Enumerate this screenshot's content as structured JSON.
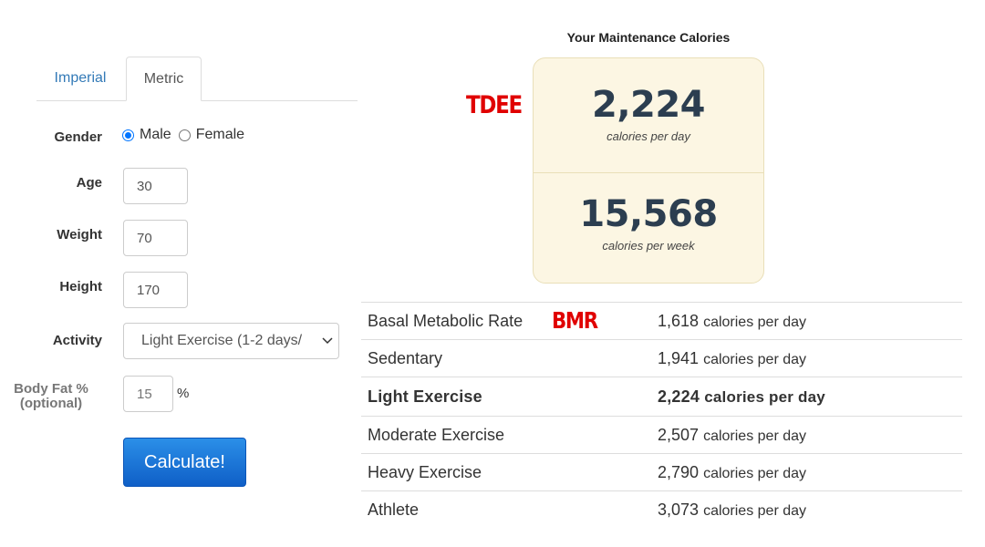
{
  "tabs": {
    "imperial": "Imperial",
    "metric": "Metric",
    "active": "Metric"
  },
  "form": {
    "gender_label": "Gender",
    "gender_male": "Male",
    "gender_female": "Female",
    "gender_selected": "Male",
    "age_label": "Age",
    "age_value": "30",
    "weight_label": "Weight",
    "weight_value": "70",
    "height_label": "Height",
    "height_value": "170",
    "activity_label": "Activity",
    "activity_value": "Light Exercise (1-2 days/",
    "bodyfat_label": "Body Fat %",
    "bodyfat_optional": "(optional)",
    "bodyfat_placeholder": "15",
    "bodyfat_unit": "%",
    "calculate_label": "Calculate!"
  },
  "result": {
    "title": "Your Maintenance Calories",
    "per_day_value": "2,224",
    "per_day_unit": "calories per day",
    "per_week_value": "15,568",
    "per_week_unit": "calories per week"
  },
  "annotations": {
    "tdee": "TDEE",
    "bmr": "BMR",
    "color": "#e00000"
  },
  "table": {
    "rows": [
      {
        "name": "Basal Metabolic Rate",
        "value": "1,618",
        "unit": "calories per day"
      },
      {
        "name": "Sedentary",
        "value": "1,941",
        "unit": "calories per day"
      },
      {
        "name": "Light Exercise",
        "value": "2,224",
        "unit": "calories per day"
      },
      {
        "name": "Moderate Exercise",
        "value": "2,507",
        "unit": "calories per day"
      },
      {
        "name": "Heavy Exercise",
        "value": "2,790",
        "unit": "calories per day"
      },
      {
        "name": "Athlete",
        "value": "3,073",
        "unit": "calories per day"
      }
    ],
    "highlighted": "Light Exercise"
  },
  "colors": {
    "link": "#337ab7",
    "result_bg": "#fcf6e3",
    "button": "#1a73d9"
  }
}
